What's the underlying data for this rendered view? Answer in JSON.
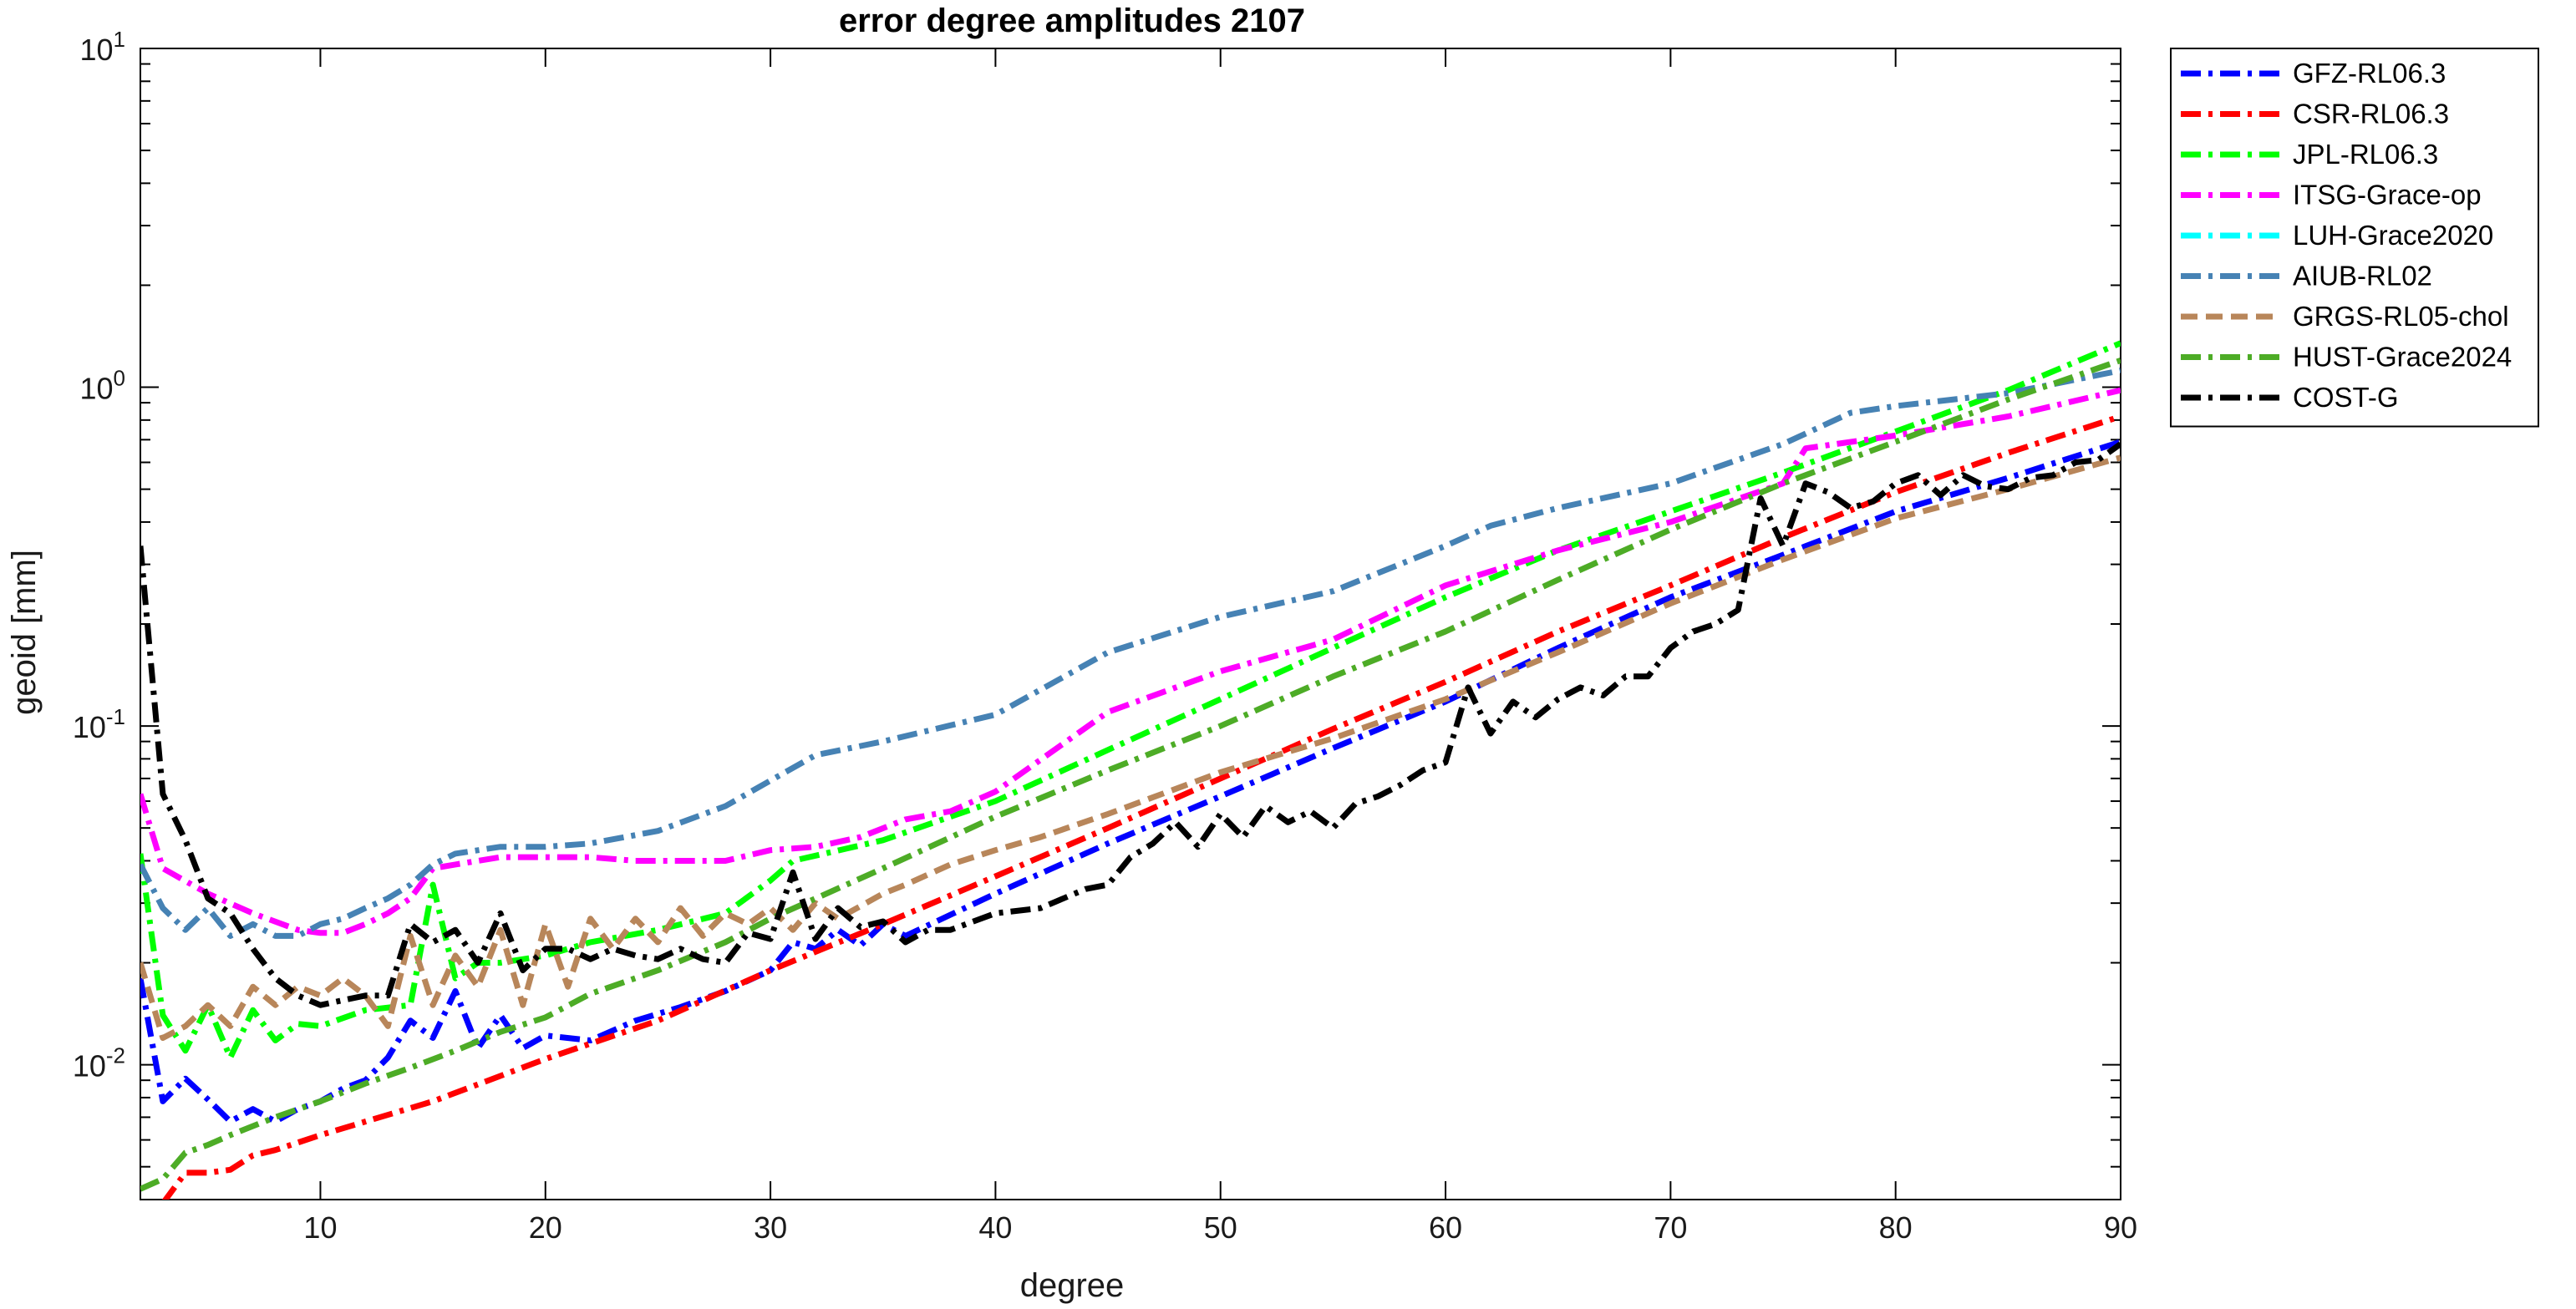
{
  "chart_data": {
    "type": "line",
    "title": "error degree amplitudes 2107",
    "xlabel": "degree",
    "ylabel": "geoid [mm]",
    "xlim": [
      2,
      90
    ],
    "ylim": [
      0.004,
      10
    ],
    "yscale": "log",
    "xticks": [
      10,
      20,
      30,
      40,
      50,
      60,
      70,
      80,
      90
    ],
    "yticks": [
      {
        "value": 0.01,
        "base": "10",
        "exp": "-2"
      },
      {
        "value": 0.1,
        "base": "10",
        "exp": "-1"
      },
      {
        "value": 1,
        "base": "10",
        "exp": "0"
      },
      {
        "value": 10,
        "base": "10",
        "exp": "1"
      }
    ],
    "grid": false,
    "legend_position": "outside-top-right",
    "series": [
      {
        "name": "GFZ-RL06.3",
        "color": "#0000ff",
        "dash": "dashdot",
        "x": [
          2,
          3,
          4,
          5,
          6,
          7,
          8,
          9,
          10,
          11,
          12,
          13,
          14,
          15,
          16,
          17,
          18,
          19,
          20,
          22,
          24,
          26,
          28,
          30,
          31,
          32,
          33,
          34,
          35,
          36,
          40,
          45,
          50,
          55,
          60,
          65,
          70,
          75,
          80,
          85,
          90
        ],
        "y": [
          0.018,
          0.0078,
          0.0091,
          0.0079,
          0.0068,
          0.0074,
          0.0068,
          0.0074,
          0.0078,
          0.0085,
          0.009,
          0.0105,
          0.0135,
          0.012,
          0.0165,
          0.0112,
          0.014,
          0.0112,
          0.0122,
          0.0118,
          0.0135,
          0.0148,
          0.0165,
          0.019,
          0.023,
          0.022,
          0.025,
          0.0225,
          0.026,
          0.024,
          0.032,
          0.045,
          0.062,
          0.086,
          0.118,
          0.17,
          0.24,
          0.32,
          0.43,
          0.54,
          0.69
        ]
      },
      {
        "name": "CSR-RL06.3",
        "color": "#ff0000",
        "dash": "dashdot",
        "x": [
          3,
          4,
          5,
          6,
          7,
          8,
          10,
          15,
          20,
          25,
          30,
          35,
          40,
          45,
          50,
          55,
          60,
          65,
          70,
          75,
          80,
          85,
          90
        ],
        "y": [
          0.0039,
          0.0048,
          0.0048,
          0.0049,
          0.0054,
          0.0056,
          0.0062,
          0.0078,
          0.0104,
          0.0135,
          0.019,
          0.026,
          0.036,
          0.05,
          0.07,
          0.098,
          0.135,
          0.19,
          0.26,
          0.36,
          0.49,
          0.64,
          0.82
        ]
      },
      {
        "name": "JPL-RL06.3",
        "color": "#00ff00",
        "dash": "dashdot",
        "x": [
          2,
          3,
          4,
          5,
          6,
          7,
          8,
          9,
          10,
          12,
          14,
          15,
          16,
          17,
          18,
          20,
          22,
          25,
          28,
          30,
          31,
          35,
          40,
          45,
          50,
          55,
          60,
          65,
          70,
          75,
          80,
          85,
          90
        ],
        "y": [
          0.042,
          0.014,
          0.011,
          0.015,
          0.0105,
          0.0145,
          0.0118,
          0.0132,
          0.013,
          0.0145,
          0.015,
          0.034,
          0.018,
          0.02,
          0.02,
          0.021,
          0.023,
          0.025,
          0.028,
          0.035,
          0.04,
          0.046,
          0.06,
          0.085,
          0.12,
          0.17,
          0.24,
          0.33,
          0.43,
          0.56,
          0.74,
          0.98,
          1.35
        ]
      },
      {
        "name": "ITSG-Grace-op",
        "color": "#ff00ff",
        "dash": "dashdot",
        "x": [
          2,
          3,
          5,
          7,
          9,
          10,
          11,
          12,
          13,
          14,
          15,
          16,
          18,
          20,
          22,
          24,
          26,
          28,
          30,
          32,
          34,
          36,
          38,
          40,
          45,
          50,
          55,
          60,
          65,
          70,
          75,
          76,
          80,
          85,
          90
        ],
        "y": [
          0.063,
          0.038,
          0.032,
          0.028,
          0.025,
          0.0245,
          0.0245,
          0.026,
          0.028,
          0.031,
          0.038,
          0.039,
          0.041,
          0.041,
          0.041,
          0.04,
          0.04,
          0.04,
          0.043,
          0.044,
          0.047,
          0.053,
          0.056,
          0.064,
          0.11,
          0.145,
          0.18,
          0.26,
          0.33,
          0.4,
          0.52,
          0.66,
          0.72,
          0.82,
          0.98
        ]
      },
      {
        "name": "LUH-Grace2020",
        "color": "#00ffff",
        "dash": "dashdot",
        "x": [],
        "y": []
      },
      {
        "name": "AIUB-RL02",
        "color": "#4682b4",
        "dash": "dashdot",
        "x": [
          2,
          3,
          4,
          5,
          6,
          7,
          8,
          9,
          10,
          11,
          12,
          13,
          14,
          15,
          16,
          18,
          20,
          22,
          25,
          28,
          30,
          32,
          35,
          40,
          45,
          50,
          55,
          60,
          62,
          65,
          70,
          75,
          78,
          80,
          85,
          90
        ],
        "y": [
          0.039,
          0.029,
          0.025,
          0.029,
          0.024,
          0.026,
          0.024,
          0.024,
          0.026,
          0.027,
          0.029,
          0.031,
          0.034,
          0.039,
          0.042,
          0.044,
          0.044,
          0.045,
          0.049,
          0.058,
          0.069,
          0.082,
          0.09,
          0.108,
          0.165,
          0.21,
          0.25,
          0.34,
          0.39,
          0.44,
          0.52,
          0.68,
          0.84,
          0.88,
          0.96,
          1.12
        ]
      },
      {
        "name": "GRGS-RL05-chol",
        "color": "#b8865a",
        "dash": "dashed",
        "x": [
          2,
          3,
          4,
          5,
          6,
          7,
          8,
          9,
          10,
          11,
          12,
          13,
          14,
          15,
          16,
          17,
          18,
          19,
          20,
          21,
          22,
          23,
          24,
          25,
          26,
          27,
          28,
          29,
          30,
          31,
          32,
          33,
          35,
          36,
          38,
          40,
          42,
          45,
          50,
          55,
          60,
          65,
          70,
          75,
          80,
          85,
          90
        ],
        "y": [
          0.02,
          0.012,
          0.013,
          0.015,
          0.013,
          0.017,
          0.015,
          0.017,
          0.016,
          0.018,
          0.016,
          0.013,
          0.024,
          0.015,
          0.021,
          0.017,
          0.025,
          0.015,
          0.026,
          0.017,
          0.027,
          0.022,
          0.027,
          0.023,
          0.029,
          0.024,
          0.028,
          0.026,
          0.029,
          0.025,
          0.03,
          0.027,
          0.032,
          0.034,
          0.039,
          0.043,
          0.047,
          0.055,
          0.073,
          0.092,
          0.12,
          0.165,
          0.23,
          0.31,
          0.41,
          0.5,
          0.62
        ]
      },
      {
        "name": "HUST-Grace2024",
        "color": "#4dac26",
        "dash": "dashdot",
        "x": [
          2,
          3,
          4,
          5,
          6,
          8,
          10,
          12,
          14,
          16,
          18,
          20,
          22,
          25,
          28,
          30,
          35,
          40,
          45,
          50,
          55,
          60,
          65,
          70,
          75,
          80,
          85,
          90
        ],
        "y": [
          0.0043,
          0.0046,
          0.0055,
          0.0058,
          0.0062,
          0.007,
          0.0078,
          0.0088,
          0.0098,
          0.011,
          0.0125,
          0.0138,
          0.0162,
          0.019,
          0.023,
          0.027,
          0.038,
          0.054,
          0.074,
          0.1,
          0.14,
          0.19,
          0.27,
          0.38,
          0.52,
          0.69,
          0.92,
          1.2
        ]
      },
      {
        "name": "COST-G",
        "color": "#000000",
        "dash": "dashdot",
        "x": [
          2,
          3,
          4,
          5,
          6,
          7,
          8,
          9,
          10,
          11,
          12,
          13,
          14,
          15,
          16,
          17,
          18,
          19,
          20,
          21,
          22,
          23,
          24,
          25,
          26,
          27,
          28,
          29,
          30,
          31,
          32,
          33,
          34,
          35,
          36,
          37,
          38,
          40,
          42,
          44,
          45,
          46,
          47,
          48,
          49,
          50,
          51,
          52,
          53,
          54,
          55,
          56,
          57,
          58,
          59,
          60,
          61,
          62,
          63,
          64,
          65,
          66,
          67,
          68,
          69,
          70,
          71,
          72,
          73,
          74,
          75,
          76,
          77,
          78,
          79,
          80,
          81,
          82,
          83,
          84,
          85,
          86,
          87,
          88,
          89,
          90
        ],
        "y": [
          0.34,
          0.063,
          0.046,
          0.031,
          0.028,
          0.022,
          0.018,
          0.016,
          0.015,
          0.0155,
          0.016,
          0.016,
          0.026,
          0.023,
          0.025,
          0.02,
          0.028,
          0.019,
          0.022,
          0.022,
          0.0205,
          0.022,
          0.021,
          0.0205,
          0.022,
          0.0205,
          0.02,
          0.0245,
          0.0235,
          0.037,
          0.0235,
          0.029,
          0.0255,
          0.0265,
          0.023,
          0.025,
          0.025,
          0.028,
          0.029,
          0.033,
          0.034,
          0.041,
          0.045,
          0.052,
          0.044,
          0.055,
          0.047,
          0.058,
          0.052,
          0.056,
          0.05,
          0.059,
          0.062,
          0.067,
          0.074,
          0.078,
          0.13,
          0.095,
          0.118,
          0.106,
          0.12,
          0.13,
          0.123,
          0.14,
          0.14,
          0.17,
          0.19,
          0.2,
          0.22,
          0.47,
          0.34,
          0.52,
          0.49,
          0.44,
          0.46,
          0.52,
          0.55,
          0.48,
          0.55,
          0.51,
          0.5,
          0.54,
          0.55,
          0.6,
          0.61,
          0.68
        ]
      }
    ]
  }
}
